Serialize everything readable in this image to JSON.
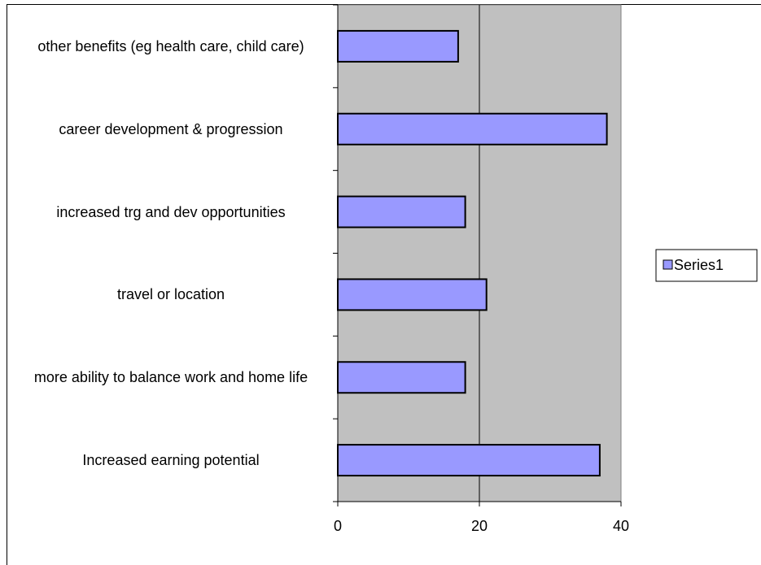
{
  "chart_data": {
    "type": "hbar",
    "categories": [
      "Increased earning potential",
      "more ability to balance work and home life",
      "travel or location",
      "increased trg and dev opportunities",
      "career development & progression",
      "other benefits (eg health care, child care)"
    ],
    "series": [
      {
        "name": "Series1",
        "color": "#9999ff",
        "values": [
          37,
          18,
          21,
          18,
          38,
          17
        ]
      }
    ],
    "xlim": [
      0,
      40
    ],
    "xticks": [
      0,
      20,
      40
    ],
    "grid": true,
    "legend": "right"
  }
}
